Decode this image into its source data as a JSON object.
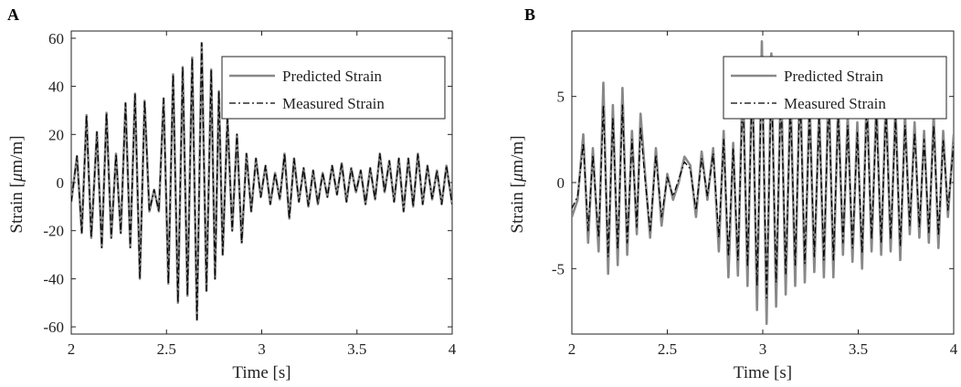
{
  "chart_data": [
    {
      "panel_label": "A",
      "type": "line",
      "xlabel": "Time [s]",
      "ylabel": "Strain [",
      "ylabel_unit": "μm/m]",
      "xlim": [
        2,
        4
      ],
      "ylim": [
        -63,
        63
      ],
      "xticks": [
        2,
        2.5,
        3,
        3.5,
        4
      ],
      "xtick_labels": [
        "2",
        "2.5",
        "3",
        "3.5",
        "4"
      ],
      "yticks": [
        -60,
        -40,
        -20,
        0,
        20,
        40,
        60
      ],
      "ytick_labels": [
        "-60",
        "-40",
        "-20",
        "0",
        "20",
        "40",
        "60"
      ],
      "grid": false,
      "legend_position": "top-right",
      "series": [
        {
          "name": "Predicted Strain",
          "color": "#888888",
          "style": "solid",
          "x": [
            2.0,
            2.03,
            2.055,
            2.08,
            2.105,
            2.135,
            2.16,
            2.185,
            2.21,
            2.235,
            2.26,
            2.285,
            2.31,
            2.335,
            2.36,
            2.385,
            2.41,
            2.435,
            2.46,
            2.485,
            2.51,
            2.535,
            2.56,
            2.585,
            2.61,
            2.635,
            2.66,
            2.685,
            2.71,
            2.735,
            2.755,
            2.775,
            2.795,
            2.82,
            2.845,
            2.87,
            2.895,
            2.92,
            2.945,
            2.97,
            2.995,
            3.02,
            3.045,
            3.07,
            3.095,
            3.12,
            3.145,
            3.17,
            3.195,
            3.22,
            3.245,
            3.27,
            3.295,
            3.32,
            3.345,
            3.37,
            3.395,
            3.42,
            3.445,
            3.47,
            3.495,
            3.52,
            3.545,
            3.57,
            3.595,
            3.62,
            3.645,
            3.67,
            3.695,
            3.72,
            3.745,
            3.77,
            3.795,
            3.82,
            3.845,
            3.87,
            3.895,
            3.92,
            3.945,
            3.97,
            4.0
          ],
          "y": [
            -8,
            11,
            -21,
            28,
            -23,
            21,
            -27,
            29,
            -23,
            12,
            -21,
            33,
            -27,
            37,
            -40,
            34,
            -12,
            -3,
            -12,
            35,
            -42,
            45,
            -50,
            48,
            -47,
            52,
            -57,
            58,
            -45,
            47,
            -40,
            38,
            -30,
            27,
            -20,
            20,
            -25,
            12,
            -12,
            10,
            -6,
            7,
            -9,
            4,
            -7,
            12,
            -15,
            10,
            -8,
            6,
            -10,
            5,
            -9,
            4,
            -6,
            7,
            -5,
            8,
            -8,
            6,
            -4,
            5,
            -9,
            6,
            -7,
            12,
            -4,
            9,
            -8,
            10,
            -12,
            10,
            -10,
            12,
            -9,
            7,
            -7,
            5,
            -9,
            7,
            -9
          ]
        },
        {
          "name": "Measured Strain",
          "color": "#000000",
          "style": "dashdot",
          "x": [
            2.0,
            2.03,
            2.055,
            2.08,
            2.105,
            2.135,
            2.16,
            2.185,
            2.21,
            2.235,
            2.26,
            2.285,
            2.31,
            2.335,
            2.36,
            2.385,
            2.41,
            2.435,
            2.46,
            2.485,
            2.51,
            2.535,
            2.56,
            2.585,
            2.61,
            2.635,
            2.66,
            2.685,
            2.71,
            2.735,
            2.755,
            2.775,
            2.795,
            2.82,
            2.845,
            2.87,
            2.895,
            2.92,
            2.945,
            2.97,
            2.995,
            3.02,
            3.045,
            3.07,
            3.095,
            3.12,
            3.145,
            3.17,
            3.195,
            3.22,
            3.245,
            3.27,
            3.295,
            3.32,
            3.345,
            3.37,
            3.395,
            3.42,
            3.445,
            3.47,
            3.495,
            3.52,
            3.545,
            3.57,
            3.595,
            3.62,
            3.645,
            3.67,
            3.695,
            3.72,
            3.745,
            3.77,
            3.795,
            3.82,
            3.845,
            3.87,
            3.895,
            3.92,
            3.945,
            3.97,
            4.0
          ],
          "y": [
            -8,
            11,
            -21,
            28,
            -23,
            21,
            -27,
            29,
            -23,
            12,
            -21,
            33,
            -27,
            37,
            -40,
            34,
            -12,
            -3,
            -12,
            35,
            -42,
            45,
            -50,
            48,
            -47,
            52,
            -57,
            58,
            -45,
            47,
            -40,
            38,
            -30,
            27,
            -20,
            20,
            -25,
            12,
            -12,
            10,
            -6,
            7,
            -9,
            4,
            -7,
            12,
            -15,
            10,
            -8,
            6,
            -10,
            5,
            -9,
            4,
            -6,
            7,
            -5,
            8,
            -8,
            6,
            -4,
            5,
            -9,
            6,
            -7,
            12,
            -4,
            9,
            -8,
            10,
            -12,
            10,
            -10,
            12,
            -9,
            7,
            -7,
            5,
            -9,
            7,
            -9
          ]
        }
      ]
    },
    {
      "panel_label": "B",
      "type": "line",
      "xlabel": "Time [s]",
      "ylabel": "Strain [",
      "ylabel_unit": "μm/m]",
      "xlim": [
        2,
        4
      ],
      "ylim": [
        -8.8,
        8.8
      ],
      "xticks": [
        2,
        2.5,
        3,
        3.5,
        4
      ],
      "xtick_labels": [
        "2",
        "2.5",
        "3",
        "3.5",
        "4"
      ],
      "yticks": [
        -5,
        0,
        5
      ],
      "ytick_labels": [
        "-5",
        "0",
        "5"
      ],
      "grid": false,
      "legend_position": "top-right",
      "series": [
        {
          "name": "Predicted Strain",
          "color": "#888888",
          "style": "solid",
          "x": [
            2.0,
            2.03,
            2.06,
            2.085,
            2.11,
            2.14,
            2.165,
            2.19,
            2.215,
            2.24,
            2.265,
            2.29,
            2.315,
            2.34,
            2.36,
            2.38,
            2.41,
            2.44,
            2.47,
            2.5,
            2.53,
            2.56,
            2.59,
            2.62,
            2.65,
            2.68,
            2.71,
            2.74,
            2.77,
            2.795,
            2.82,
            2.845,
            2.87,
            2.895,
            2.92,
            2.945,
            2.97,
            2.995,
            3.02,
            3.045,
            3.07,
            3.095,
            3.12,
            3.145,
            3.17,
            3.195,
            3.22,
            3.245,
            3.27,
            3.295,
            3.32,
            3.345,
            3.37,
            3.395,
            3.42,
            3.445,
            3.47,
            3.495,
            3.52,
            3.545,
            3.57,
            3.595,
            3.62,
            3.645,
            3.67,
            3.695,
            3.72,
            3.745,
            3.77,
            3.795,
            3.82,
            3.845,
            3.87,
            3.895,
            3.92,
            3.945,
            3.97,
            4.0
          ],
          "y": [
            -2,
            -1,
            2.8,
            -3.5,
            2,
            -4,
            5.8,
            -5.3,
            4.5,
            -4.8,
            5.5,
            -4.2,
            3,
            -3,
            4,
            1,
            -3.2,
            2,
            -2.5,
            0.5,
            -1,
            0,
            1.5,
            1,
            -2,
            1.8,
            -1,
            2,
            -4,
            3,
            -5.5,
            2.3,
            -5.4,
            6.5,
            -6,
            7,
            -7.4,
            8.2,
            -8.2,
            7.5,
            -7.2,
            6.5,
            -6.5,
            5.5,
            -6,
            6.5,
            -5.8,
            5,
            -5.2,
            4.5,
            -5.5,
            6,
            -5.5,
            4.8,
            -4.2,
            4,
            -4.6,
            3.5,
            -5,
            5.5,
            -4,
            4.8,
            -4.2,
            5,
            -4,
            4.5,
            -4.5,
            4,
            -3,
            3.5,
            -3.2,
            3,
            -3.5,
            4,
            -3.8,
            3,
            -2,
            2.8
          ]
        },
        {
          "name": "Measured Strain",
          "color": "#000000",
          "style": "dashdot",
          "x": [
            2.0,
            2.03,
            2.06,
            2.085,
            2.11,
            2.14,
            2.165,
            2.19,
            2.215,
            2.24,
            2.265,
            2.29,
            2.315,
            2.34,
            2.36,
            2.38,
            2.41,
            2.44,
            2.47,
            2.5,
            2.53,
            2.56,
            2.59,
            2.62,
            2.65,
            2.68,
            2.71,
            2.74,
            2.77,
            2.795,
            2.82,
            2.845,
            2.87,
            2.895,
            2.92,
            2.945,
            2.97,
            2.995,
            3.02,
            3.045,
            3.07,
            3.095,
            3.12,
            3.145,
            3.17,
            3.195,
            3.22,
            3.245,
            3.27,
            3.295,
            3.32,
            3.345,
            3.37,
            3.395,
            3.42,
            3.445,
            3.47,
            3.495,
            3.52,
            3.545,
            3.57,
            3.595,
            3.62,
            3.645,
            3.67,
            3.695,
            3.72,
            3.745,
            3.77,
            3.795,
            3.82,
            3.845,
            3.87,
            3.895,
            3.92,
            3.945,
            3.97,
            4.0
          ],
          "y": [
            -1.5,
            -0.8,
            2.3,
            -2.8,
            1.6,
            -3.2,
            4.5,
            -4.3,
            3.8,
            -3.9,
            4.5,
            -3.5,
            2.5,
            -2.6,
            3.2,
            0.6,
            -2.8,
            1.6,
            -2,
            0.3,
            -0.8,
            0.2,
            1.2,
            0.8,
            -1.6,
            1.4,
            -0.8,
            1.7,
            -3.2,
            2.5,
            -4.3,
            2,
            -4.5,
            5.2,
            -4.9,
            5.7,
            -6,
            6.8,
            -6.7,
            6.1,
            -5.8,
            5.3,
            -5.3,
            4.5,
            -4.8,
            5.4,
            -4.7,
            4.1,
            -4.3,
            3.7,
            -4.5,
            4.9,
            -4.5,
            3.9,
            -3.5,
            3.3,
            -3.8,
            2.9,
            -4.1,
            4.5,
            -3.3,
            3.9,
            -3.5,
            4.1,
            -3.3,
            3.7,
            -3.7,
            3.3,
            -2.5,
            2.9,
            -2.6,
            2.5,
            -2.9,
            3.3,
            -3.1,
            2.5,
            -1.6,
            2.3
          ]
        }
      ]
    }
  ]
}
